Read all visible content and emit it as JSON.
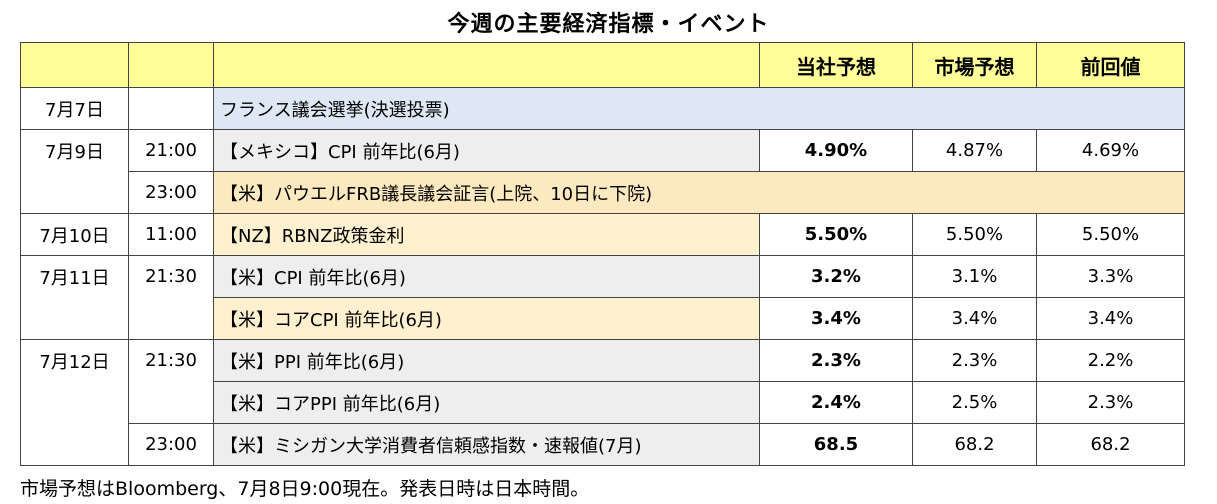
{
  "title": "今週の主要経済指標・イベント",
  "headers": {
    "company": "当社予想",
    "market": "市場予想",
    "previous": "前回値"
  },
  "rows": [
    {
      "date": "7月7日",
      "time": "",
      "event": "フランス議会選挙(決選投票)",
      "company": "",
      "market": "",
      "previous": ""
    },
    {
      "date": "7月9日",
      "time": "21:00",
      "event": "【メキシコ】CPI 前年比(6月)",
      "company": "4.90%",
      "market": "4.87%",
      "previous": "4.69%"
    },
    {
      "date": "",
      "time": "23:00",
      "event": "【米】パウエルFRB議長議会証言(上院、10日に下院)",
      "company": "",
      "market": "",
      "previous": ""
    },
    {
      "date": "7月10日",
      "time": "11:00",
      "event": "【NZ】RBNZ政策金利",
      "company": "5.50%",
      "market": "5.50%",
      "previous": "5.50%"
    },
    {
      "date": "7月11日",
      "time": "21:30",
      "event": "【米】CPI 前年比(6月)",
      "company": "3.2%",
      "market": "3.1%",
      "previous": "3.3%"
    },
    {
      "date": "",
      "time": "",
      "event": "【米】コアCPI 前年比(6月)",
      "company": "3.4%",
      "market": "3.4%",
      "previous": "3.4%"
    },
    {
      "date": "7月12日",
      "time": "21:30",
      "event": "【米】PPI 前年比(6月)",
      "company": "2.3%",
      "market": "2.3%",
      "previous": "2.2%"
    },
    {
      "date": "",
      "time": "",
      "event": "【米】コアPPI 前年比(6月)",
      "company": "2.4%",
      "market": "2.5%",
      "previous": "2.3%"
    },
    {
      "date": "",
      "time": "23:00",
      "event": "【米】ミシガン大学消費者信頼感指数・速報値(7月)",
      "company": "68.5",
      "market": "68.2",
      "previous": "68.2"
    }
  ],
  "footnote": "市場予想はBloomberg、7月8日9:00現在。発表日時は日本時間。"
}
